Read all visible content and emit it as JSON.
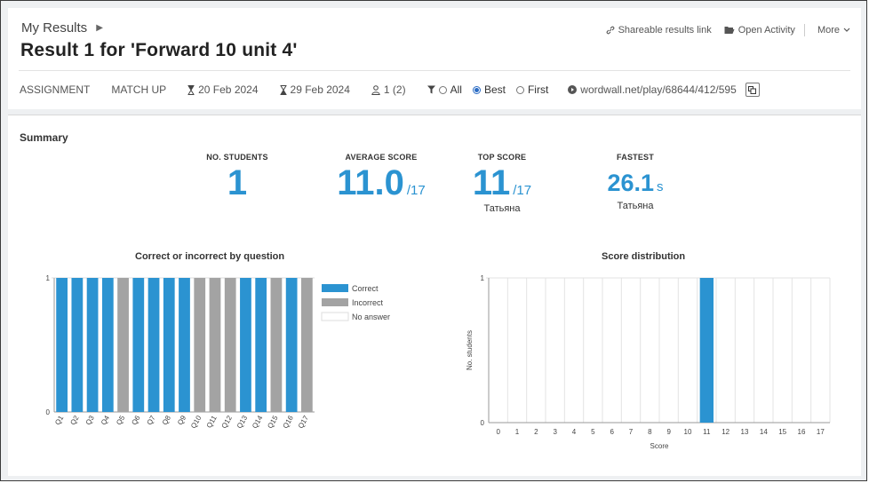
{
  "header": {
    "breadcrumb": "My Results",
    "title": "Result 1 for 'Forward 10 unit 4'",
    "actions": {
      "share": "Shareable results link",
      "open": "Open Activity",
      "more": "More"
    }
  },
  "meta": {
    "type": "ASSIGNMENT",
    "template": "MATCH UP",
    "start_date": "20 Feb 2024",
    "end_date": "29 Feb 2024",
    "participants": "1 (2)",
    "filter_options": [
      "All",
      "Best",
      "First"
    ],
    "filter_selected": "Best",
    "link": "wordwall.net/play/68644/412/595"
  },
  "summary": {
    "heading": "Summary",
    "students": {
      "label": "NO. STUDENTS",
      "value": "1"
    },
    "average": {
      "label": "AVERAGE SCORE",
      "value": "11.0",
      "suffix": "/17"
    },
    "top": {
      "label": "TOP SCORE",
      "value": "11",
      "suffix": "/17",
      "who": "Татьяна"
    },
    "fastest": {
      "label": "FASTEST",
      "value": "26.1",
      "suffix": "s",
      "who": "Татьяна"
    }
  },
  "colors": {
    "correct": "#2b93d1",
    "incorrect": "#a3a3a3",
    "accent": "#2b93d1"
  },
  "chart_data": [
    {
      "type": "bar",
      "title": "Correct or incorrect by question",
      "categories": [
        "Q1",
        "Q2",
        "Q3",
        "Q4",
        "Q5",
        "Q6",
        "Q7",
        "Q8",
        "Q9",
        "Q10",
        "Q11",
        "Q12",
        "Q13",
        "Q14",
        "Q15",
        "Q16",
        "Q17"
      ],
      "series": [
        {
          "name": "Correct",
          "values": [
            1,
            1,
            1,
            1,
            0,
            1,
            1,
            1,
            1,
            0,
            0,
            0,
            1,
            1,
            0,
            1,
            0
          ]
        },
        {
          "name": "Incorrect",
          "values": [
            0,
            0,
            0,
            0,
            1,
            0,
            0,
            0,
            0,
            1,
            1,
            1,
            0,
            0,
            1,
            0,
            1
          ]
        },
        {
          "name": "No answer",
          "values": [
            0,
            0,
            0,
            0,
            0,
            0,
            0,
            0,
            0,
            0,
            0,
            0,
            0,
            0,
            0,
            0,
            0
          ]
        }
      ],
      "yticks": [
        "0",
        "1"
      ],
      "ylim": [
        0,
        1
      ],
      "legend": "right"
    },
    {
      "type": "bar",
      "title": "Score distribution",
      "categories": [
        "0",
        "1",
        "2",
        "3",
        "4",
        "5",
        "6",
        "7",
        "8",
        "9",
        "10",
        "11",
        "12",
        "13",
        "14",
        "15",
        "16",
        "17"
      ],
      "values": [
        0,
        0,
        0,
        0,
        0,
        0,
        0,
        0,
        0,
        0,
        0,
        1,
        0,
        0,
        0,
        0,
        0,
        0
      ],
      "xlabel": "Score",
      "ylabel": "No. students",
      "yticks": [
        "0",
        "1"
      ],
      "ylim": [
        0,
        1
      ]
    }
  ]
}
